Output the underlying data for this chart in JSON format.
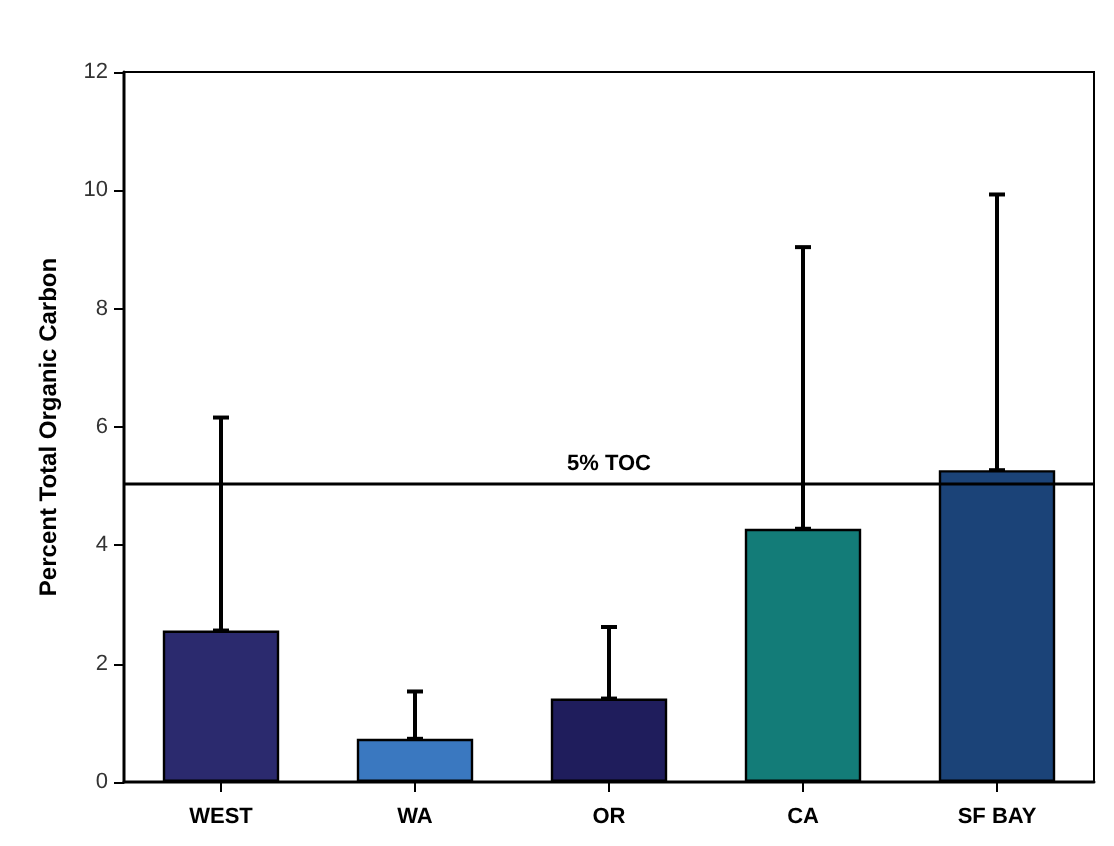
{
  "chart_data": {
    "type": "bar",
    "ylabel": "Percent Total Organic Carbon",
    "categories": [
      "WEST",
      "WA",
      "OR",
      "CA",
      "SF BAY"
    ],
    "values": [
      2.56,
      0.73,
      1.41,
      4.28,
      5.27
    ],
    "colors": [
      "#2b2a6e",
      "#3a78c0",
      "#1f1d5c",
      "#137c78",
      "#1b4378"
    ],
    "errors": [
      [
        2.56,
        6.16
      ],
      [
        0.73,
        1.53
      ],
      [
        1.41,
        2.62
      ],
      [
        4.28,
        9.04
      ],
      [
        5.27,
        9.93
      ]
    ],
    "ylim": [
      0,
      12
    ],
    "yticks": [
      0,
      2,
      4,
      6,
      8,
      10,
      12
    ],
    "ref_lines": [
      {
        "axis": "y",
        "value": 5.05,
        "label": "5% TOC",
        "color": "#000000"
      }
    ],
    "grid": false
  }
}
